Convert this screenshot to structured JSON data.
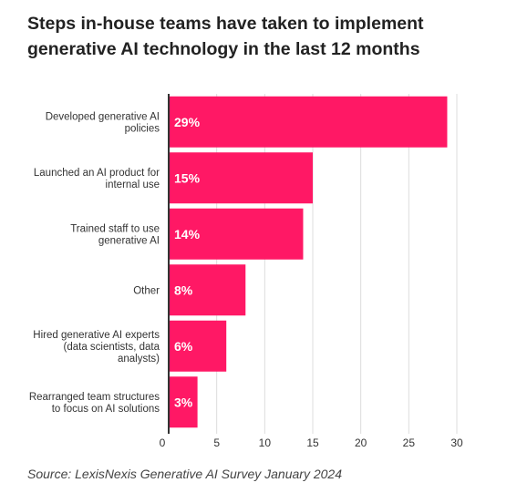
{
  "chart_data": {
    "type": "bar",
    "orientation": "horizontal",
    "title": "Steps in-house teams have taken to implement generative AI technology in the last 12 months",
    "categories": [
      [
        "Developed generative AI",
        "policies"
      ],
      [
        "Launched an AI product for",
        "internal use"
      ],
      [
        "Trained staff to use",
        "generative AI"
      ],
      [
        "Other"
      ],
      [
        "Hired generative AI experts",
        "(data scientists, data",
        "analysts)"
      ],
      [
        "Rearranged team structures",
        "to focus on AI solutions"
      ]
    ],
    "values": [
      29,
      15,
      14,
      8,
      6,
      3
    ],
    "data_labels": [
      "29%",
      "15%",
      "14%",
      "8%",
      "6%",
      "3%"
    ],
    "x_ticks": [
      0,
      5,
      10,
      15,
      20,
      25,
      30
    ],
    "xlim": [
      0,
      30
    ],
    "xlabel": "",
    "ylabel": "",
    "grid": true,
    "legend": "none",
    "colors": {
      "bar": "#ff1865",
      "grid": "#dddddd",
      "axis": "#333333",
      "bar_label": "#ffffff"
    }
  },
  "source": "Source: LexisNexis Generative AI Survey January 2024"
}
